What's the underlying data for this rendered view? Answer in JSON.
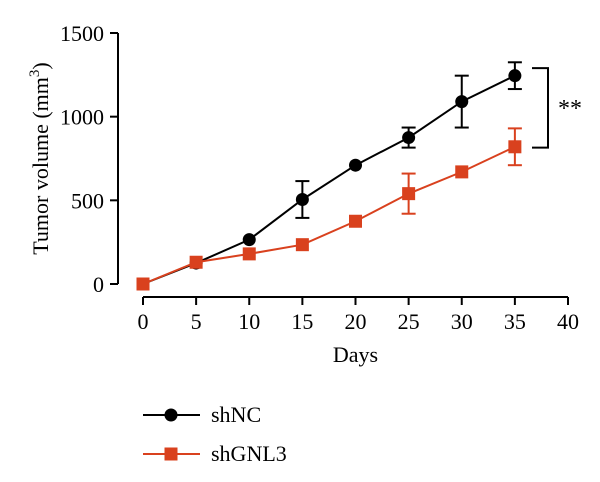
{
  "chart_data": {
    "type": "line",
    "xlabel": "Days",
    "ylabel_main": "Tumor volume (mm",
    "ylabel_sup": "3",
    "ylabel_close": ")",
    "xlim": [
      0,
      40
    ],
    "ylim": [
      0,
      1500
    ],
    "xticks": [
      0,
      5,
      10,
      15,
      20,
      25,
      30,
      35,
      40
    ],
    "yticks": [
      0,
      500,
      1000,
      1500
    ],
    "grid": false,
    "legend_position": "bottom-left",
    "significance": "**",
    "series": [
      {
        "name": "shNC",
        "color": "#000000",
        "marker": "circle",
        "x": [
          0,
          5,
          10,
          15,
          20,
          25,
          30,
          35
        ],
        "y": [
          0,
          125,
          265,
          505,
          710,
          875,
          1090,
          1245
        ],
        "err": [
          0,
          0,
          0,
          110,
          0,
          60,
          155,
          80
        ]
      },
      {
        "name": "shGNL3",
        "color": "#d9411e",
        "marker": "square",
        "x": [
          0,
          5,
          10,
          15,
          20,
          25,
          30,
          35
        ],
        "y": [
          0,
          130,
          180,
          235,
          375,
          540,
          670,
          820
        ],
        "err": [
          0,
          0,
          0,
          0,
          0,
          120,
          0,
          110
        ]
      }
    ]
  }
}
